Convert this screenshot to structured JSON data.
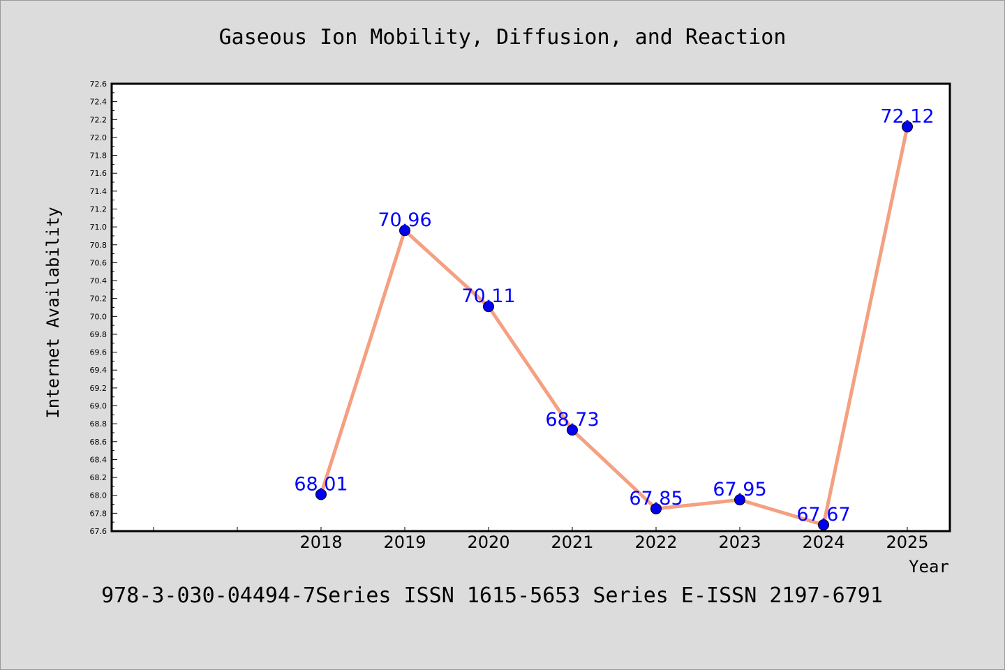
{
  "chart_data": {
    "type": "line",
    "title": "Gaseous Ion Mobility, Diffusion, and Reaction",
    "xlabel": "Year",
    "ylabel": "Internet Availability",
    "categories": [
      "2018",
      "2019",
      "2020",
      "2021",
      "2022",
      "2023",
      "2024",
      "2025"
    ],
    "series": [
      {
        "values": [
          68.01,
          70.96,
          70.11,
          68.73,
          67.85,
          67.95,
          67.67,
          72.12
        ],
        "labels": [
          "68.01",
          "70.96",
          "70.11",
          "68.73",
          "67.85",
          "67.95",
          "67.67",
          "72.12"
        ]
      }
    ],
    "ylim": [
      67.6,
      72.6
    ],
    "yticks": [
      "67.6",
      "67.8",
      "68.0",
      "68.2",
      "68.4",
      "68.6",
      "68.8",
      "69.0",
      "69.2",
      "69.4",
      "69.6",
      "69.8",
      "70.0",
      "70.2",
      "70.4",
      "70.6",
      "70.8",
      "71.0",
      "71.2",
      "71.4",
      "71.6",
      "71.8",
      "72.0",
      "72.2",
      "72.4",
      "72.6"
    ],
    "grid": false,
    "colors": {
      "line": "#f4a081",
      "marker": "#0000ee",
      "label": "#0000ff",
      "background": "#dcdcdc",
      "plot": "#ffffff"
    }
  },
  "footer": "978-3-030-04494-7Series ISSN 1615-5653 Series E-ISSN 2197-6791"
}
